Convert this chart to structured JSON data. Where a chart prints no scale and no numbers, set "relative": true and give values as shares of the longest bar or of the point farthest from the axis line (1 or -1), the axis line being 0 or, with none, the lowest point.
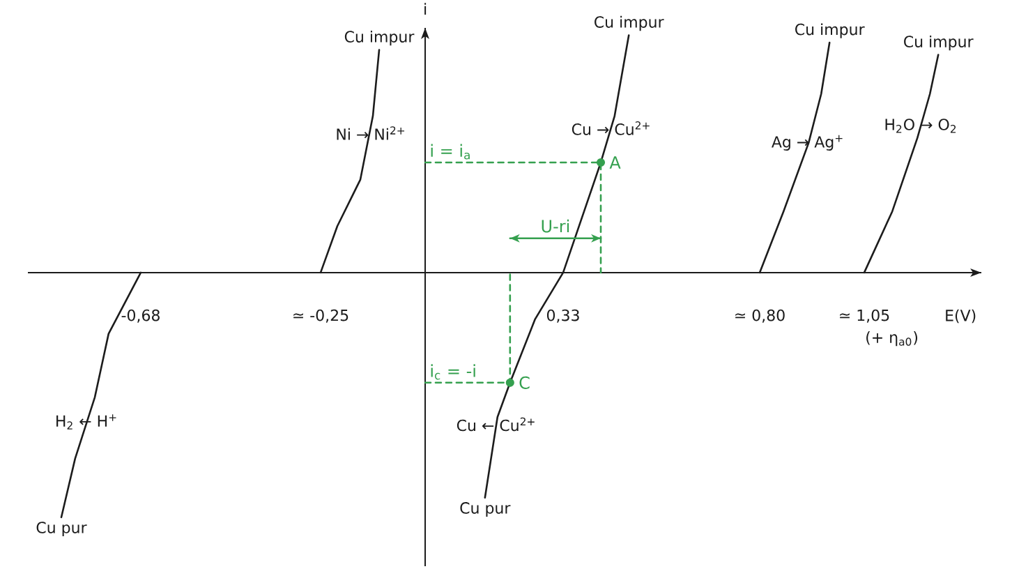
{
  "chart_data": {
    "type": "line",
    "relative": true,
    "xlabel": "E(V)",
    "ylabel": "i",
    "xlim": [
      -0.95,
      1.33
    ],
    "xticks": [
      {
        "value": -0.68,
        "label": "-0,68"
      },
      {
        "value": -0.25,
        "label": "≃ -0,25"
      },
      {
        "value": 0.33,
        "label": "0,33"
      },
      {
        "value": 0.8,
        "label": "≃ 0,80"
      },
      {
        "value": 1.05,
        "label": "≃ 1,05"
      }
    ],
    "marker": "none",
    "line_style": "solid",
    "series": [
      {
        "color": "#1c1c1c",
        "x": [
          -0.87,
          -0.837,
          -0.79,
          -0.757,
          -0.68
        ],
        "values": [
          -1.0,
          -0.76,
          -0.51,
          -0.25,
          0
        ]
      },
      {
        "color": "#1c1c1c",
        "x": [
          -0.25,
          -0.21,
          -0.155,
          -0.125,
          -0.11
        ],
        "values": [
          0,
          0.19,
          0.38,
          0.64,
          0.91
        ]
      },
      {
        "color": "#1c1c1c",
        "x": [
          0.143,
          0.173,
          0.203,
          0.263,
          0.33,
          0.42,
          0.453,
          0.487
        ],
        "values": [
          -0.92,
          -0.59,
          -0.45,
          -0.19,
          0,
          0.45,
          0.64,
          0.97
        ]
      },
      {
        "color": "#1c1c1c",
        "x": [
          0.8,
          0.857,
          0.917,
          0.947,
          0.967
        ],
        "values": [
          0,
          0.25,
          0.53,
          0.73,
          0.94
        ]
      },
      {
        "color": "#1c1c1c",
        "x": [
          1.05,
          1.117,
          1.177,
          1.207,
          1.227
        ],
        "values": [
          0,
          0.25,
          0.55,
          0.73,
          0.89
        ]
      },
      {
        "name": "i = i$_{a}$",
        "color": "#35a04f",
        "line_style": "dashed",
        "x": [
          0,
          0.42,
          0.42
        ],
        "values": [
          0.45,
          0.45,
          0
        ]
      },
      {
        "name": "i$_{c}$ = -i",
        "color": "#35a04f",
        "line_style": "dashed",
        "x": [
          0,
          0.203,
          0.203
        ],
        "values": [
          -0.45,
          -0.45,
          0
        ]
      },
      {
        "type": "scatter",
        "marker": "circle",
        "color": "#35a04f",
        "x": [
          0.42,
          0.203
        ],
        "values": [
          0.45,
          -0.45
        ]
      },
      {
        "color": "#35a04f",
        "x": [
          0.203,
          0.42
        ],
        "values": [
          0.14,
          0.14
        ]
      }
    ],
    "annotations": [
      {
        "text": "Cu impur",
        "x": -0.11,
        "y": 0.91
      },
      {
        "text": "Cu impur",
        "x": 0.487,
        "y": 0.97
      },
      {
        "text": "Cu impur",
        "x": 0.967,
        "y": 0.94
      },
      {
        "text": "Cu impur",
        "x": 1.227,
        "y": 0.89
      },
      {
        "text": "Ni → Ni$^{2+}$",
        "x": -0.13,
        "y": 0.57
      },
      {
        "text": "Cu → Cu$^{2+}$",
        "x": 0.445,
        "y": 0.59
      },
      {
        "text": "A",
        "x": 0.42,
        "y": 0.45
      },
      {
        "text": "U-ri",
        "x": 0.3115,
        "y": 0.14
      },
      {
        "text": "Ag → Ag$^{+}$",
        "x": 0.915,
        "y": 0.53
      },
      {
        "text": "H$_{2}$O → O$_{2}$",
        "x": 1.185,
        "y": 0.6
      },
      "(+ η$_{a0}$)",
      {
        "text": "C",
        "x": 0.203,
        "y": -0.45
      },
      {
        "text": "H$_{2}$ ← H$^{+}$",
        "x": -0.81,
        "y": -0.61
      },
      {
        "text": "Cu ← Cu$^{2+}$",
        "x": 0.17,
        "y": -0.62
      },
      {
        "text": "Cu pur",
        "x": -0.87,
        "y": -1.0
      },
      {
        "text": "Cu pur",
        "x": 0.143,
        "y": -0.92
      }
    ]
  }
}
